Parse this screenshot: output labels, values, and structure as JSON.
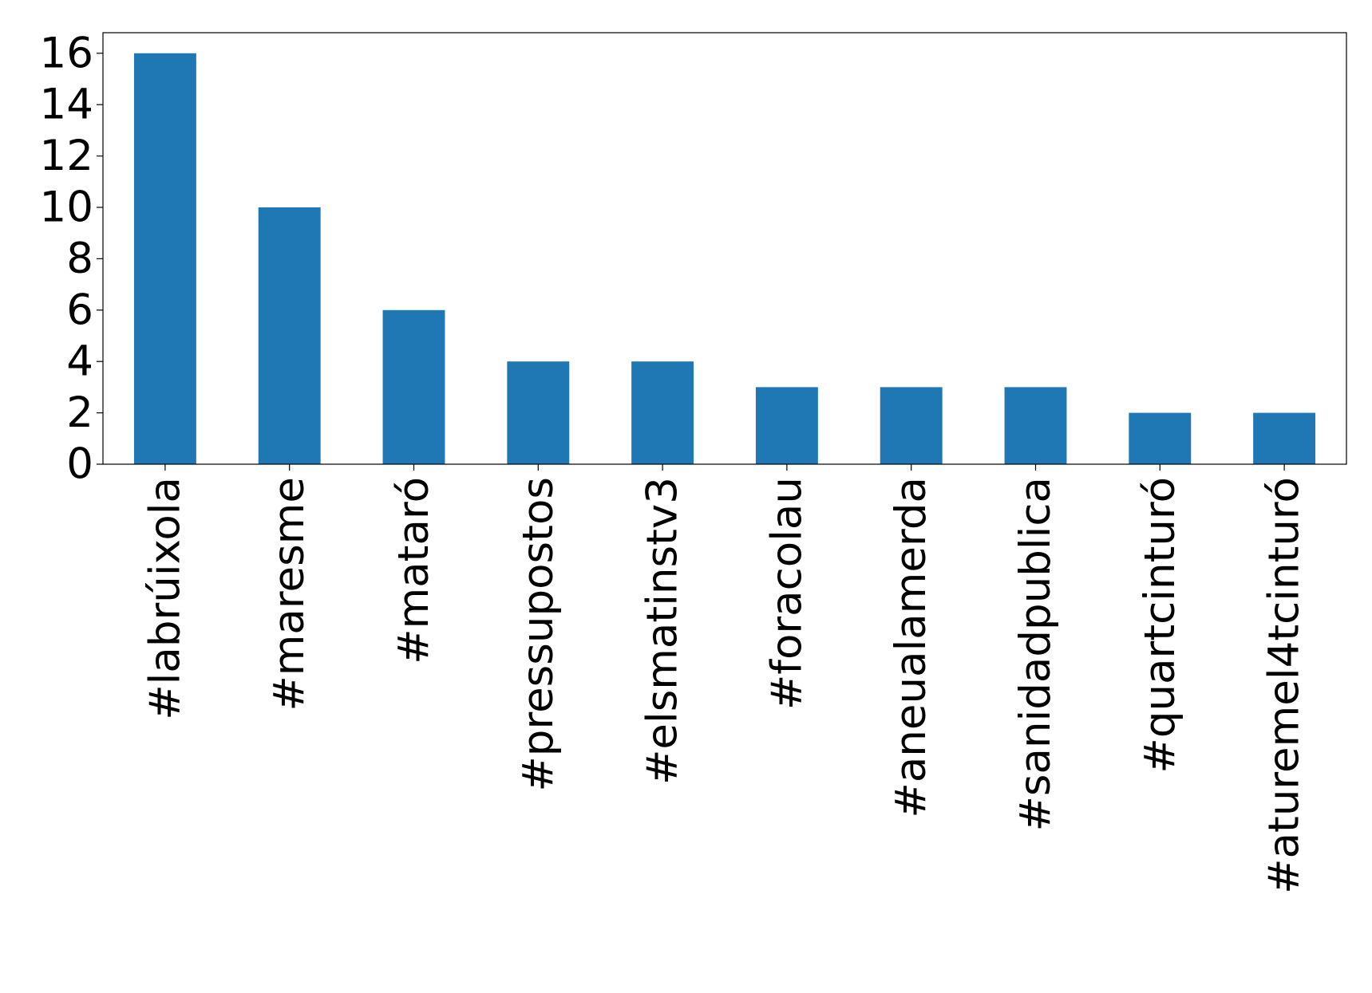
{
  "chart_data": {
    "type": "bar",
    "categories": [
      "#labrúixola",
      "#maresme",
      "#mataró",
      "#pressupostos",
      "#elsmatinstv3",
      "#foracolau",
      "#aneualamerda",
      "#sanidadpublica",
      "#quartcinturó",
      "#aturemel4tcinturó"
    ],
    "values": [
      16,
      10,
      6,
      4,
      4,
      3,
      3,
      3,
      2,
      2
    ],
    "color": "#1f77b4",
    "ylim": [
      0,
      16.8
    ],
    "yticks": [
      0,
      2,
      4,
      6,
      8,
      10,
      12,
      14,
      16
    ],
    "grid": false
  }
}
